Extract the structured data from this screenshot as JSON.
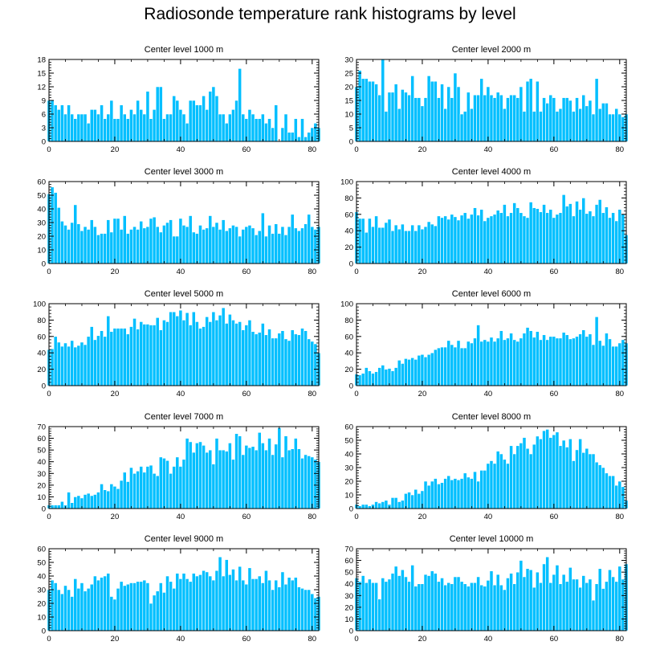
{
  "title": "Radiosonde temperature rank histograms by level",
  "colors": {
    "bar": "#00BFFF",
    "bar_stroke": "#ffffff",
    "axis": "#000000"
  },
  "chart_data": [
    {
      "type": "bar",
      "title": "Center level 1000 m",
      "xlim": [
        0,
        82
      ],
      "ylim": [
        0,
        18
      ],
      "xticks": [
        0,
        20,
        40,
        60,
        80
      ],
      "yticks": [
        0,
        3,
        6,
        9,
        12,
        15,
        18
      ],
      "values": [
        9,
        9,
        8,
        7,
        8,
        6,
        8,
        6,
        5,
        6,
        6,
        6,
        4,
        7,
        7,
        6,
        8,
        5,
        6,
        9,
        5,
        5,
        8,
        6,
        5,
        7,
        6,
        9,
        7,
        6,
        11,
        5,
        7,
        12,
        12,
        5,
        6,
        6,
        10,
        9,
        7,
        6,
        4,
        9,
        9,
        8,
        8,
        10,
        7,
        11,
        12,
        10,
        6,
        6,
        4,
        6,
        7,
        9,
        16,
        6,
        5,
        7,
        6,
        5,
        5,
        6,
        4,
        5,
        3,
        8,
        0,
        3,
        6,
        2,
        2,
        5,
        1,
        5,
        1,
        2,
        3,
        4,
        3
      ]
    },
    {
      "type": "bar",
      "title": "Center level 2000 m",
      "xlim": [
        0,
        82
      ],
      "ylim": [
        0,
        30
      ],
      "xticks": [
        0,
        20,
        40,
        60,
        80
      ],
      "yticks": [
        0,
        5,
        10,
        15,
        20,
        25,
        30
      ],
      "values": [
        20,
        26,
        23,
        23,
        22,
        22,
        21,
        17,
        30,
        11,
        18,
        18,
        21,
        12,
        19,
        18,
        17,
        24,
        16,
        16,
        13,
        16,
        24,
        22,
        22,
        16,
        21,
        12,
        20,
        16,
        25,
        20,
        10,
        11,
        18,
        12,
        17,
        17,
        23,
        17,
        20,
        17,
        16,
        18,
        17,
        12,
        16,
        17,
        17,
        16,
        20,
        11,
        22,
        23,
        11,
        22,
        11,
        16,
        14,
        17,
        16,
        11,
        12,
        16,
        16,
        15,
        11,
        16,
        12,
        17,
        13,
        15,
        10,
        23,
        12,
        14,
        14,
        10,
        10,
        12,
        10,
        9,
        10
      ]
    },
    {
      "type": "bar",
      "title": "Center level 3000 m",
      "xlim": [
        0,
        82
      ],
      "ylim": [
        0,
        60
      ],
      "xticks": [
        0,
        20,
        40,
        60,
        80
      ],
      "yticks": [
        0,
        10,
        20,
        30,
        40,
        50,
        60
      ],
      "values": [
        51,
        56,
        52,
        41,
        31,
        28,
        25,
        30,
        43,
        29,
        24,
        27,
        25,
        32,
        27,
        21,
        22,
        22,
        32,
        23,
        33,
        33,
        25,
        35,
        22,
        25,
        27,
        25,
        31,
        26,
        27,
        33,
        34,
        27,
        23,
        28,
        30,
        32,
        20,
        20,
        33,
        28,
        27,
        35,
        23,
        22,
        28,
        25,
        26,
        35,
        27,
        30,
        25,
        32,
        24,
        26,
        28,
        27,
        20,
        25,
        27,
        28,
        26,
        21,
        24,
        37,
        20,
        28,
        22,
        29,
        22,
        27,
        21,
        27,
        36,
        26,
        24,
        26,
        29,
        36,
        27,
        25,
        27
      ]
    },
    {
      "type": "bar",
      "title": "Center level 4000 m",
      "xlim": [
        0,
        82
      ],
      "ylim": [
        0,
        100
      ],
      "xticks": [
        0,
        20,
        40,
        60,
        80
      ],
      "yticks": [
        0,
        20,
        40,
        60,
        80,
        100
      ],
      "values": [
        63,
        55,
        55,
        38,
        55,
        45,
        58,
        44,
        44,
        50,
        54,
        40,
        47,
        42,
        48,
        40,
        40,
        47,
        40,
        47,
        42,
        45,
        51,
        48,
        46,
        58,
        56,
        58,
        54,
        60,
        57,
        53,
        59,
        62,
        55,
        60,
        68,
        59,
        66,
        52,
        56,
        58,
        60,
        65,
        62,
        72,
        58,
        62,
        74,
        68,
        62,
        58,
        56,
        75,
        68,
        67,
        63,
        72,
        62,
        66,
        56,
        60,
        62,
        84,
        70,
        73,
        58,
        76,
        66,
        80,
        61,
        64,
        58,
        72,
        78,
        62,
        69,
        56,
        62,
        52,
        66,
        60,
        35
      ]
    },
    {
      "type": "bar",
      "title": "Center level 5000 m",
      "xlim": [
        0,
        82
      ],
      "ylim": [
        0,
        100
      ],
      "xticks": [
        0,
        20,
        40,
        60,
        80
      ],
      "yticks": [
        0,
        20,
        40,
        60,
        80,
        100
      ],
      "values": [
        44,
        45,
        60,
        53,
        48,
        52,
        48,
        55,
        47,
        49,
        53,
        50,
        60,
        72,
        56,
        61,
        67,
        60,
        85,
        66,
        70,
        70,
        70,
        70,
        63,
        72,
        82,
        69,
        78,
        75,
        75,
        74,
        74,
        83,
        68,
        80,
        78,
        90,
        90,
        85,
        92,
        80,
        89,
        74,
        90,
        78,
        70,
        72,
        84,
        78,
        90,
        80,
        86,
        95,
        76,
        87,
        80,
        76,
        78,
        68,
        74,
        80,
        66,
        63,
        65,
        76,
        62,
        69,
        58,
        58,
        64,
        67,
        57,
        55,
        68,
        63,
        62,
        70,
        67,
        57,
        54,
        51,
        40
      ]
    },
    {
      "type": "bar",
      "title": "Center level 6000 m",
      "xlim": [
        0,
        82
      ],
      "ylim": [
        0,
        100
      ],
      "xticks": [
        0,
        20,
        40,
        60,
        80
      ],
      "yticks": [
        0,
        20,
        40,
        60,
        80,
        100
      ],
      "values": [
        14,
        13,
        15,
        22,
        18,
        15,
        17,
        22,
        25,
        20,
        21,
        18,
        22,
        31,
        27,
        33,
        32,
        34,
        32,
        37,
        38,
        35,
        38,
        40,
        44,
        46,
        47,
        47,
        55,
        50,
        47,
        55,
        46,
        46,
        54,
        52,
        58,
        74,
        54,
        56,
        54,
        59,
        54,
        58,
        67,
        56,
        58,
        64,
        56,
        54,
        58,
        64,
        71,
        67,
        59,
        66,
        56,
        62,
        56,
        60,
        60,
        58,
        58,
        65,
        62,
        57,
        58,
        60,
        63,
        68,
        60,
        63,
        50,
        84,
        55,
        49,
        64,
        57,
        48,
        48,
        52,
        56,
        52
      ]
    },
    {
      "type": "bar",
      "title": "Center level 7000 m",
      "xlim": [
        0,
        82
      ],
      "ylim": [
        0,
        70
      ],
      "xticks": [
        0,
        20,
        40,
        60,
        80
      ],
      "yticks": [
        0,
        10,
        20,
        30,
        40,
        50,
        60,
        70
      ],
      "values": [
        3,
        3,
        3,
        3,
        6,
        3,
        14,
        5,
        10,
        11,
        9,
        12,
        13,
        11,
        12,
        14,
        21,
        16,
        15,
        21,
        19,
        17,
        24,
        31,
        23,
        35,
        30,
        32,
        36,
        31,
        36,
        37,
        30,
        28,
        44,
        43,
        41,
        30,
        36,
        44,
        36,
        42,
        60,
        57,
        48,
        56,
        57,
        54,
        48,
        50,
        38,
        60,
        50,
        50,
        49,
        56,
        42,
        64,
        62,
        46,
        54,
        52,
        53,
        50,
        65,
        56,
        50,
        60,
        46,
        55,
        69,
        44,
        62,
        50,
        51,
        60,
        51,
        43,
        46,
        45,
        44,
        42,
        40
      ]
    },
    {
      "type": "bar",
      "title": "Center level 8000 m",
      "xlim": [
        0,
        82
      ],
      "ylim": [
        0,
        60
      ],
      "xticks": [
        0,
        20,
        40,
        60,
        80
      ],
      "yticks": [
        0,
        10,
        20,
        30,
        40,
        50,
        60
      ],
      "values": [
        3,
        2,
        3,
        3,
        2,
        3,
        5,
        4,
        5,
        6,
        3,
        8,
        8,
        5,
        6,
        11,
        12,
        10,
        14,
        11,
        13,
        20,
        17,
        20,
        22,
        18,
        19,
        22,
        24,
        21,
        22,
        21,
        22,
        26,
        23,
        22,
        27,
        20,
        28,
        28,
        33,
        35,
        33,
        42,
        40,
        36,
        33,
        46,
        40,
        46,
        48,
        52,
        44,
        40,
        47,
        53,
        51,
        57,
        58,
        52,
        54,
        56,
        46,
        50,
        45,
        51,
        35,
        43,
        51,
        41,
        44,
        40,
        40,
        34,
        32,
        30,
        26,
        24,
        24,
        17,
        20,
        16,
        6
      ]
    },
    {
      "type": "bar",
      "title": "Center level 9000 m",
      "xlim": [
        0,
        82
      ],
      "ylim": [
        0,
        60
      ],
      "xticks": [
        0,
        20,
        40,
        60,
        80
      ],
      "yticks": [
        0,
        10,
        20,
        30,
        40,
        50,
        60
      ],
      "values": [
        30,
        37,
        35,
        30,
        27,
        33,
        30,
        25,
        38,
        31,
        35,
        29,
        31,
        34,
        40,
        37,
        39,
        40,
        42,
        25,
        23,
        31,
        36,
        33,
        34,
        35,
        35,
        36,
        36,
        37,
        35,
        20,
        26,
        29,
        35,
        28,
        40,
        36,
        31,
        42,
        38,
        42,
        38,
        36,
        42,
        40,
        41,
        44,
        43,
        40,
        37,
        44,
        54,
        40,
        52,
        41,
        45,
        37,
        47,
        37,
        34,
        46,
        38,
        38,
        40,
        35,
        44,
        37,
        30,
        37,
        32,
        43,
        34,
        39,
        37,
        39,
        32,
        31,
        30,
        30,
        27,
        24,
        25
      ]
    },
    {
      "type": "bar",
      "title": "Center level 10000 m",
      "xlim": [
        0,
        82
      ],
      "ylim": [
        0,
        70
      ],
      "xticks": [
        0,
        20,
        40,
        60,
        80
      ],
      "yticks": [
        0,
        10,
        20,
        30,
        40,
        50,
        60,
        70
      ],
      "values": [
        45,
        42,
        47,
        41,
        44,
        41,
        41,
        27,
        45,
        42,
        44,
        49,
        55,
        47,
        52,
        46,
        42,
        56,
        38,
        40,
        40,
        48,
        47,
        51,
        49,
        42,
        45,
        39,
        41,
        40,
        46,
        46,
        42,
        40,
        38,
        41,
        41,
        46,
        39,
        38,
        43,
        51,
        39,
        48,
        39,
        35,
        45,
        49,
        40,
        50,
        60,
        46,
        53,
        52,
        37,
        50,
        41,
        57,
        63,
        41,
        48,
        56,
        40,
        48,
        42,
        54,
        44,
        44,
        37,
        47,
        41,
        44,
        26,
        40,
        53,
        36,
        42,
        52,
        46,
        42,
        55,
        44,
        57
      ]
    }
  ]
}
